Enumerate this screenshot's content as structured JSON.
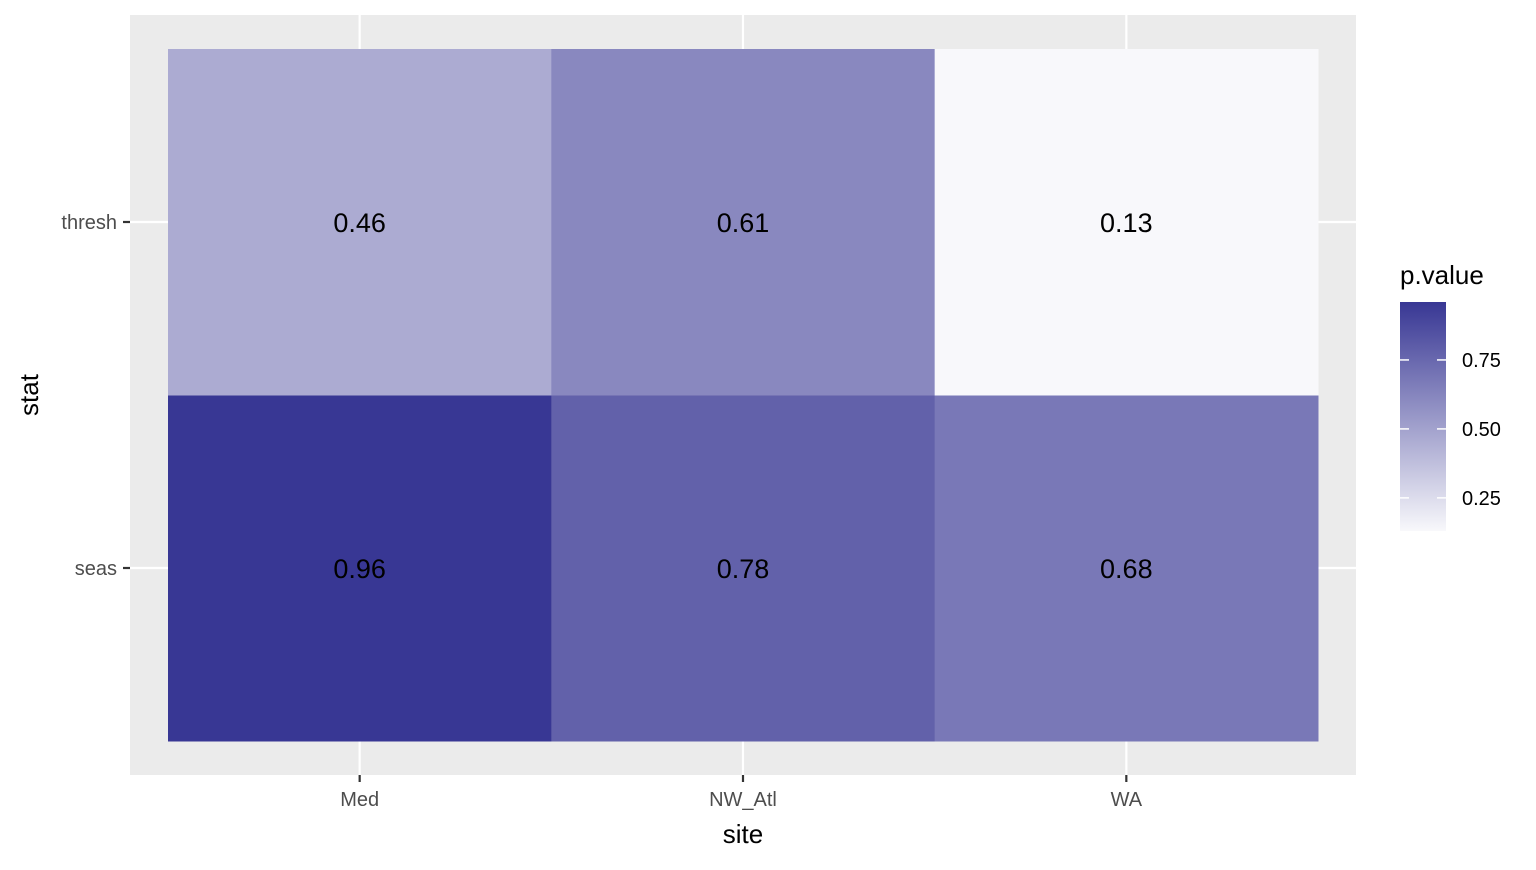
{
  "chart_data": {
    "type": "heatmap",
    "x": [
      "Med",
      "NW_Atl",
      "WA"
    ],
    "y": [
      "seas",
      "thresh"
    ],
    "values": [
      [
        0.96,
        0.78,
        0.68
      ],
      [
        0.46,
        0.61,
        0.13
      ]
    ],
    "cell_labels": [
      [
        "0.96",
        "0.78",
        "0.68"
      ],
      [
        "0.46",
        "0.61",
        "0.13"
      ]
    ],
    "xlabel": "site",
    "ylabel": "stat",
    "legend": {
      "title": "p.value",
      "ticks": [
        0.25,
        0.5,
        0.75
      ],
      "tick_labels": [
        "0.25",
        "0.50",
        "0.75"
      ],
      "range": [
        0.13,
        0.96
      ],
      "low_color": "#f8f8fb",
      "high_color": "#383794",
      "position": "right"
    },
    "panel_background": "#ebebeb",
    "gridline_color": "#ffffff",
    "grid": true
  }
}
